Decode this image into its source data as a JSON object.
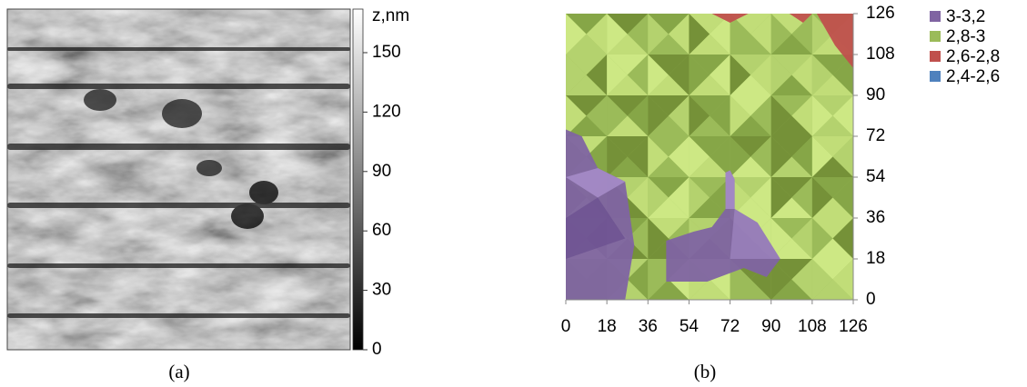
{
  "chart_data": [
    {
      "type": "heatmap",
      "colorbar_label": "z,nm",
      "zlim": [
        0,
        172
      ],
      "zticks": [
        0,
        30,
        60,
        90,
        120,
        150
      ],
      "caption": "(a)"
    },
    {
      "type": "contour",
      "caption": "(b)",
      "xlim": [
        0,
        126
      ],
      "xticks": [
        0,
        18,
        36,
        54,
        72,
        90,
        108,
        126
      ],
      "ylim": [
        0,
        126
      ],
      "yticks": [
        0,
        18,
        36,
        54,
        72,
        90,
        108,
        126
      ],
      "series": [
        {
          "name": "3-3,2",
          "color": "#8064a2"
        },
        {
          "name": "2,8-3",
          "color": "#9bbb59"
        },
        {
          "name": "2,6-2,8",
          "color": "#c0504d"
        },
        {
          "name": "2,4-2,6",
          "color": "#4f81bd"
        }
      ]
    }
  ]
}
